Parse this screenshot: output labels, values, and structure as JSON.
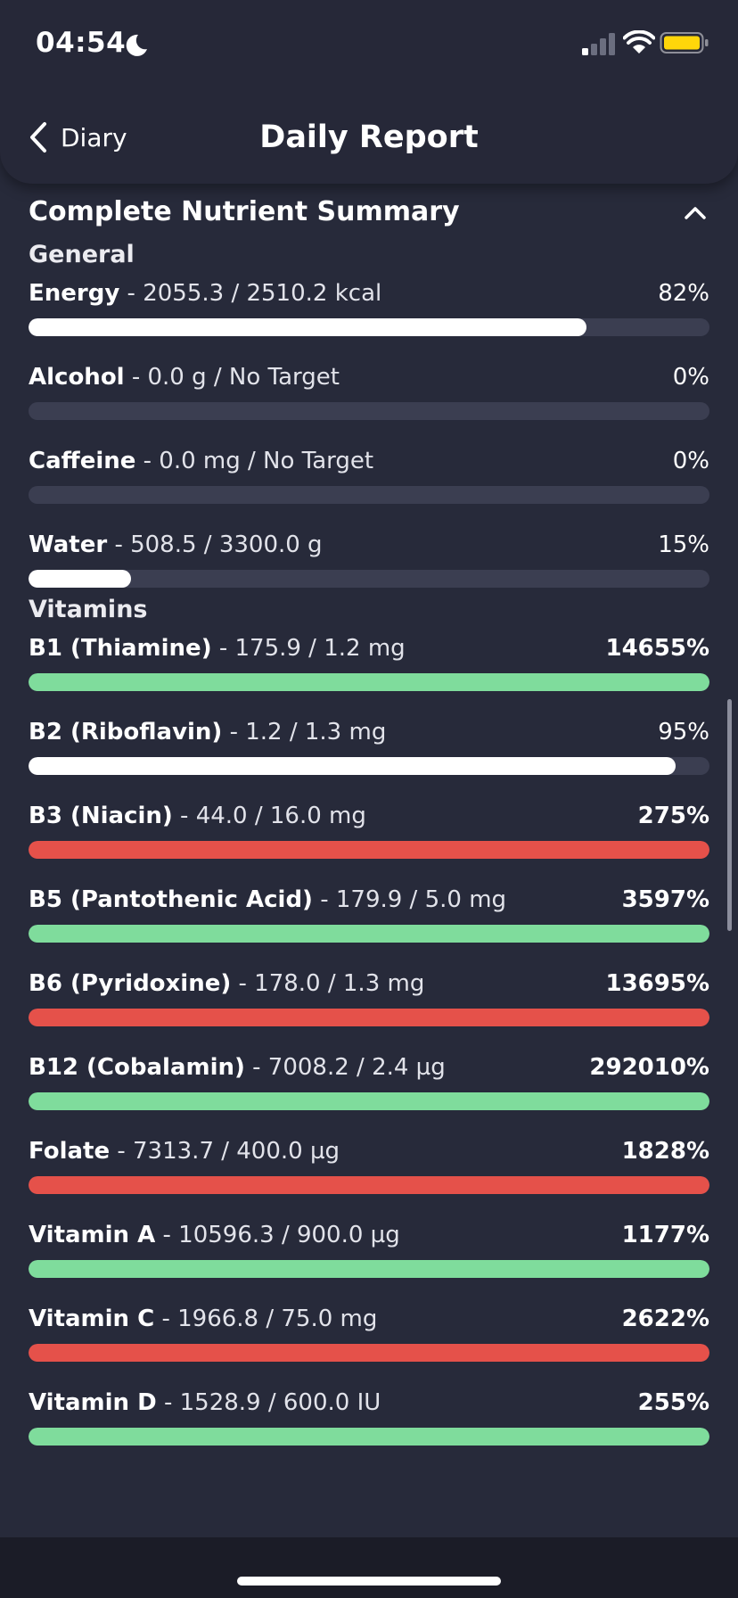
{
  "status_bar": {
    "time": "04:54",
    "icons": [
      "moon-icon",
      "signal-icon",
      "wifi-icon",
      "battery-icon"
    ],
    "battery_color": "#ffd60a"
  },
  "nav": {
    "back_label": "Diary",
    "title": "Daily Report"
  },
  "summary": {
    "title": "Complete Nutrient Summary",
    "colors": {
      "neutral": "#ffffff",
      "good": "#7fdc9c",
      "over": "#e5514a",
      "track": "#3b3e51"
    },
    "groups": [
      {
        "title": "General",
        "items": [
          {
            "name": "Energy",
            "detail": " - 2055.3 / 2510.2 kcal",
            "percent_label": "82%",
            "fill": 0.82,
            "status": "neutral"
          },
          {
            "name": "Alcohol",
            "detail": " - 0.0 g / No Target",
            "percent_label": "0%",
            "fill": 0,
            "status": "neutral"
          },
          {
            "name": "Caffeine",
            "detail": " - 0.0 mg / No Target",
            "percent_label": "0%",
            "fill": 0,
            "status": "neutral"
          },
          {
            "name": "Water",
            "detail": " - 508.5 / 3300.0 g",
            "percent_label": "15%",
            "fill": 0.15,
            "status": "neutral"
          }
        ]
      },
      {
        "title": "Vitamins",
        "items": [
          {
            "name": "B1 (Thiamine)",
            "detail": " - 175.9 / 1.2 mg",
            "percent_label": "14655%",
            "fill": 1,
            "status": "good"
          },
          {
            "name": "B2 (Riboflavin)",
            "detail": " - 1.2 / 1.3 mg",
            "percent_label": "95%",
            "fill": 0.95,
            "status": "neutral"
          },
          {
            "name": "B3 (Niacin)",
            "detail": " - 44.0 / 16.0 mg",
            "percent_label": "275%",
            "fill": 1,
            "status": "over"
          },
          {
            "name": "B5 (Pantothenic Acid)",
            "detail": " - 179.9 / 5.0 mg",
            "percent_label": "3597%",
            "fill": 1,
            "status": "good"
          },
          {
            "name": "B6 (Pyridoxine)",
            "detail": " - 178.0 / 1.3 mg",
            "percent_label": "13695%",
            "fill": 1,
            "status": "over"
          },
          {
            "name": "B12 (Cobalamin)",
            "detail": " - 7008.2 / 2.4 µg",
            "percent_label": "292010%",
            "fill": 1,
            "status": "good"
          },
          {
            "name": "Folate",
            "detail": " - 7313.7 / 400.0 µg",
            "percent_label": "1828%",
            "fill": 1,
            "status": "over"
          },
          {
            "name": "Vitamin A",
            "detail": " - 10596.3 / 900.0 µg",
            "percent_label": "1177%",
            "fill": 1,
            "status": "good"
          },
          {
            "name": "Vitamin C",
            "detail": " - 1966.8 / 75.0 mg",
            "percent_label": "2622%",
            "fill": 1,
            "status": "over"
          },
          {
            "name": "Vitamin D",
            "detail": " - 1528.9 / 600.0 IU",
            "percent_label": "255%",
            "fill": 1,
            "status": "good"
          }
        ]
      }
    ]
  }
}
